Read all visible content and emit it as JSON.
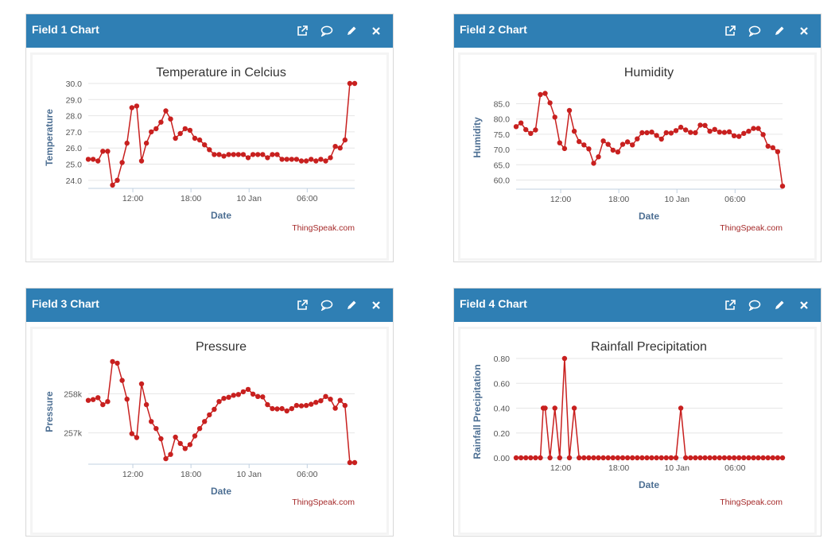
{
  "colors": {
    "header": "#2f7fb4",
    "series": "#c8201f",
    "grid": "#e6e6e6",
    "axis_label": "#4d6f93",
    "credit": "#a52a2a"
  },
  "icons": [
    "external-link-icon",
    "comment-icon",
    "pencil-icon",
    "close-icon"
  ],
  "panels": [
    {
      "title": "Field 1 Chart"
    },
    {
      "title": "Field 2 Chart"
    },
    {
      "title": "Field 3 Chart"
    },
    {
      "title": "Field 4 Chart"
    }
  ],
  "chart_data": [
    {
      "type": "line",
      "title": "Temperature in Celcius",
      "xlabel": "Date",
      "ylabel": "Temperature",
      "credit": "ThingSpeak.com",
      "x_ticks": [
        "12:00",
        "18:00",
        "10 Jan",
        "06:00"
      ],
      "x_tick_hours": [
        12,
        18,
        24,
        30
      ],
      "xlim": [
        7.4,
        34.9
      ],
      "y_ticks": [
        "24.0",
        "25.0",
        "26.0",
        "27.0",
        "28.0",
        "29.0",
        "30.0"
      ],
      "ylim": [
        23.5,
        30.0
      ],
      "x": [
        7.4,
        7.9,
        8.4,
        8.9,
        9.4,
        9.9,
        10.4,
        10.9,
        11.4,
        11.9,
        12.4,
        12.9,
        13.4,
        13.9,
        14.4,
        14.9,
        15.4,
        15.9,
        16.4,
        16.9,
        17.4,
        17.9,
        18.4,
        18.9,
        19.4,
        19.9,
        20.4,
        20.9,
        21.4,
        21.9,
        22.4,
        22.9,
        23.4,
        23.9,
        24.4,
        24.9,
        25.4,
        25.9,
        26.4,
        26.9,
        27.4,
        27.9,
        28.4,
        28.9,
        29.4,
        29.9,
        30.4,
        30.9,
        31.4,
        31.9,
        32.4,
        32.9,
        33.4,
        33.9,
        34.4,
        34.9
      ],
      "values": [
        25.3,
        25.3,
        25.2,
        25.8,
        25.8,
        23.7,
        24.0,
        25.1,
        26.3,
        28.5,
        28.6,
        25.2,
        26.3,
        27.0,
        27.2,
        27.6,
        28.3,
        27.8,
        26.6,
        26.9,
        27.2,
        27.1,
        26.6,
        26.5,
        26.2,
        25.9,
        25.6,
        25.6,
        25.5,
        25.6,
        25.6,
        25.6,
        25.6,
        25.4,
        25.6,
        25.6,
        25.6,
        25.4,
        25.6,
        25.6,
        25.3,
        25.3,
        25.3,
        25.3,
        25.2,
        25.2,
        25.3,
        25.2,
        25.3,
        25.2,
        25.4,
        26.1,
        26.0,
        26.5,
        30.0,
        30.0
      ]
    },
    {
      "type": "line",
      "title": "Humidity",
      "xlabel": "Date",
      "ylabel": "Humidity",
      "credit": "ThingSpeak.com",
      "x_ticks": [
        "12:00",
        "18:00",
        "10 Jan",
        "06:00"
      ],
      "x_tick_hours": [
        12,
        18,
        24,
        30
      ],
      "xlim": [
        7.4,
        34.9
      ],
      "y_ticks": [
        "60.0",
        "65.0",
        "70.0",
        "75.0",
        "80.0",
        "85.0"
      ],
      "ylim": [
        57.0,
        88.0
      ],
      "x": [
        7.4,
        7.9,
        8.4,
        8.9,
        9.4,
        9.9,
        10.4,
        10.9,
        11.4,
        11.9,
        12.4,
        12.9,
        13.4,
        13.9,
        14.4,
        14.9,
        15.4,
        15.9,
        16.4,
        16.9,
        17.4,
        17.9,
        18.4,
        18.9,
        19.4,
        19.9,
        20.4,
        20.9,
        21.4,
        21.9,
        22.4,
        22.9,
        23.4,
        23.9,
        24.4,
        24.9,
        25.4,
        25.9,
        26.4,
        26.9,
        27.4,
        27.9,
        28.4,
        28.9,
        29.4,
        29.9,
        30.4,
        30.9,
        31.4,
        31.9,
        32.4,
        32.9,
        33.4,
        33.9,
        34.4,
        34.9
      ],
      "values": [
        77.5,
        78.7,
        76.5,
        75.3,
        76.4,
        88.0,
        88.4,
        85.3,
        80.6,
        72.2,
        70.3,
        82.8,
        76.0,
        72.6,
        71.5,
        70.2,
        65.5,
        67.6,
        72.8,
        71.7,
        69.8,
        69.2,
        71.7,
        72.5,
        71.5,
        73.5,
        75.5,
        75.5,
        75.7,
        74.6,
        73.4,
        75.5,
        75.4,
        76.2,
        77.3,
        76.4,
        75.6,
        75.5,
        78.0,
        77.9,
        76.0,
        76.6,
        75.7,
        75.6,
        75.8,
        74.5,
        74.3,
        75.3,
        76.0,
        76.9,
        76.9,
        74.9,
        71.1,
        70.6,
        69.3,
        58.0
      ]
    },
    {
      "type": "line",
      "title": "Pressure",
      "xlabel": "Date",
      "ylabel": "Pressure",
      "credit": "ThingSpeak.com",
      "x_ticks": [
        "12:00",
        "18:00",
        "10 Jan",
        "06:00"
      ],
      "x_tick_hours": [
        12,
        18,
        24,
        30
      ],
      "xlim": [
        7.4,
        34.9
      ],
      "y_ticks": [
        "257k",
        "258k"
      ],
      "y_tick_values": [
        257000,
        258000
      ],
      "ylim": [
        256200,
        258900
      ],
      "x": [
        7.4,
        7.9,
        8.4,
        8.9,
        9.4,
        9.9,
        10.4,
        10.9,
        11.4,
        11.9,
        12.4,
        12.9,
        13.4,
        13.9,
        14.4,
        14.9,
        15.4,
        15.9,
        16.4,
        16.9,
        17.4,
        17.9,
        18.4,
        18.9,
        19.4,
        19.9,
        20.4,
        20.9,
        21.4,
        21.9,
        22.4,
        22.9,
        23.4,
        23.9,
        24.4,
        24.9,
        25.4,
        25.9,
        26.4,
        26.9,
        27.4,
        27.9,
        28.4,
        28.9,
        29.4,
        29.9,
        30.4,
        30.9,
        31.4,
        31.9,
        32.4,
        32.9,
        33.4,
        33.9,
        34.4,
        34.9
      ],
      "values": [
        257830,
        257850,
        257900,
        257720,
        257800,
        258820,
        258780,
        258340,
        257860,
        256980,
        256880,
        258250,
        257720,
        257290,
        257110,
        256850,
        256340,
        256450,
        256890,
        256730,
        256600,
        256700,
        256920,
        257110,
        257290,
        257460,
        257600,
        257800,
        257880,
        257910,
        257960,
        257980,
        258050,
        258110,
        257990,
        257930,
        257920,
        257720,
        257620,
        257610,
        257620,
        257560,
        257620,
        257700,
        257690,
        257700,
        257730,
        257780,
        257820,
        257930,
        257860,
        257630,
        257830,
        257700,
        256240,
        256240
      ]
    },
    {
      "type": "line",
      "title": "Rainfall Precipitation",
      "xlabel": "Date",
      "ylabel": "Rainfall Precipitation",
      "credit": "ThingSpeak.com",
      "x_ticks": [
        "12:00",
        "18:00",
        "10 Jan",
        "06:00"
      ],
      "x_tick_hours": [
        12,
        18,
        24,
        30
      ],
      "xlim": [
        7.4,
        34.9
      ],
      "y_ticks": [
        "0.00",
        "0.20",
        "0.40",
        "0.60",
        "0.80"
      ],
      "y_tick_values": [
        0,
        0.2,
        0.4,
        0.6,
        0.8
      ],
      "ylim": [
        0,
        0.8
      ],
      "x": [
        7.4,
        7.9,
        8.4,
        8.9,
        9.4,
        9.9,
        10.2,
        10.4,
        10.9,
        11.4,
        11.9,
        12.4,
        12.9,
        13.4,
        13.9,
        14.4,
        14.9,
        15.4,
        15.9,
        16.4,
        16.9,
        17.4,
        17.9,
        18.4,
        18.9,
        19.4,
        19.9,
        20.4,
        20.9,
        21.4,
        21.9,
        22.4,
        22.9,
        23.4,
        23.9,
        24.4,
        24.9,
        25.4,
        25.9,
        26.4,
        26.9,
        27.4,
        27.9,
        28.4,
        28.9,
        29.4,
        29.9,
        30.4,
        30.9,
        31.4,
        31.9,
        32.4,
        32.9,
        33.4,
        33.9,
        34.4,
        34.9
      ],
      "values": [
        0,
        0,
        0,
        0,
        0,
        0,
        0.4,
        0.4,
        0,
        0.4,
        0,
        0.8,
        0,
        0.4,
        0,
        0,
        0,
        0,
        0,
        0,
        0,
        0,
        0,
        0,
        0,
        0,
        0,
        0,
        0,
        0,
        0,
        0,
        0,
        0,
        0,
        0.4,
        0,
        0,
        0,
        0,
        0,
        0,
        0,
        0,
        0,
        0,
        0,
        0,
        0,
        0,
        0,
        0,
        0,
        0,
        0,
        0,
        0
      ]
    }
  ]
}
